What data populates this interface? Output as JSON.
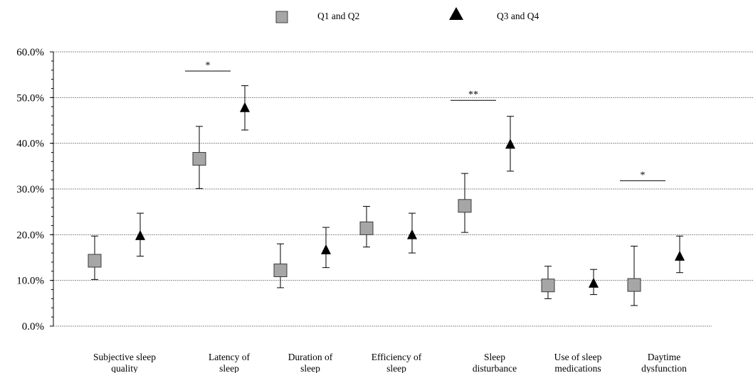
{
  "chart_data": {
    "type": "scatter",
    "categories": [
      [
        "Subjective sleep",
        "quality"
      ],
      [
        "Latency of",
        "sleep"
      ],
      [
        "Duration of",
        "sleep"
      ],
      [
        "Efficiency of",
        "sleep"
      ],
      [
        "Sleep",
        "disturbance"
      ],
      [
        "Use of sleep",
        "medications"
      ],
      [
        "Daytime",
        "dysfunction"
      ]
    ],
    "series": [
      {
        "name": "Q1 and Q2",
        "marker": "square",
        "color": "#a6a6a6",
        "values": [
          14.3,
          36.6,
          12.2,
          21.4,
          26.3,
          8.9,
          9.0
        ],
        "err_low": [
          10.2,
          30.1,
          8.4,
          17.3,
          20.5,
          6.0,
          4.5
        ],
        "err_high": [
          19.7,
          43.7,
          18.0,
          26.2,
          33.4,
          13.1,
          17.5
        ]
      },
      {
        "name": "Q3 and Q4",
        "marker": "triangle",
        "color": "#000000",
        "values": [
          19.6,
          47.6,
          16.5,
          19.8,
          39.6,
          9.2,
          15.1
        ],
        "err_low": [
          15.3,
          42.9,
          12.8,
          16.0,
          33.9,
          6.9,
          11.7
        ],
        "err_high": [
          24.7,
          52.6,
          21.6,
          24.7,
          45.9,
          12.4,
          19.7
        ]
      }
    ],
    "yticks": [
      "0.0%",
      "10.0%",
      "20.0%",
      "30.0%",
      "40.0%",
      "50.0%",
      "60.0%"
    ],
    "ylim": [
      0,
      60
    ],
    "grid": true,
    "legend_position": "top",
    "significance": [
      {
        "category_index": 1,
        "label": "*",
        "y": 55.8
      },
      {
        "category_index": 4,
        "label": "**",
        "y": 49.4
      },
      {
        "category_index": 6,
        "label": "*",
        "y": 31.8
      }
    ]
  }
}
